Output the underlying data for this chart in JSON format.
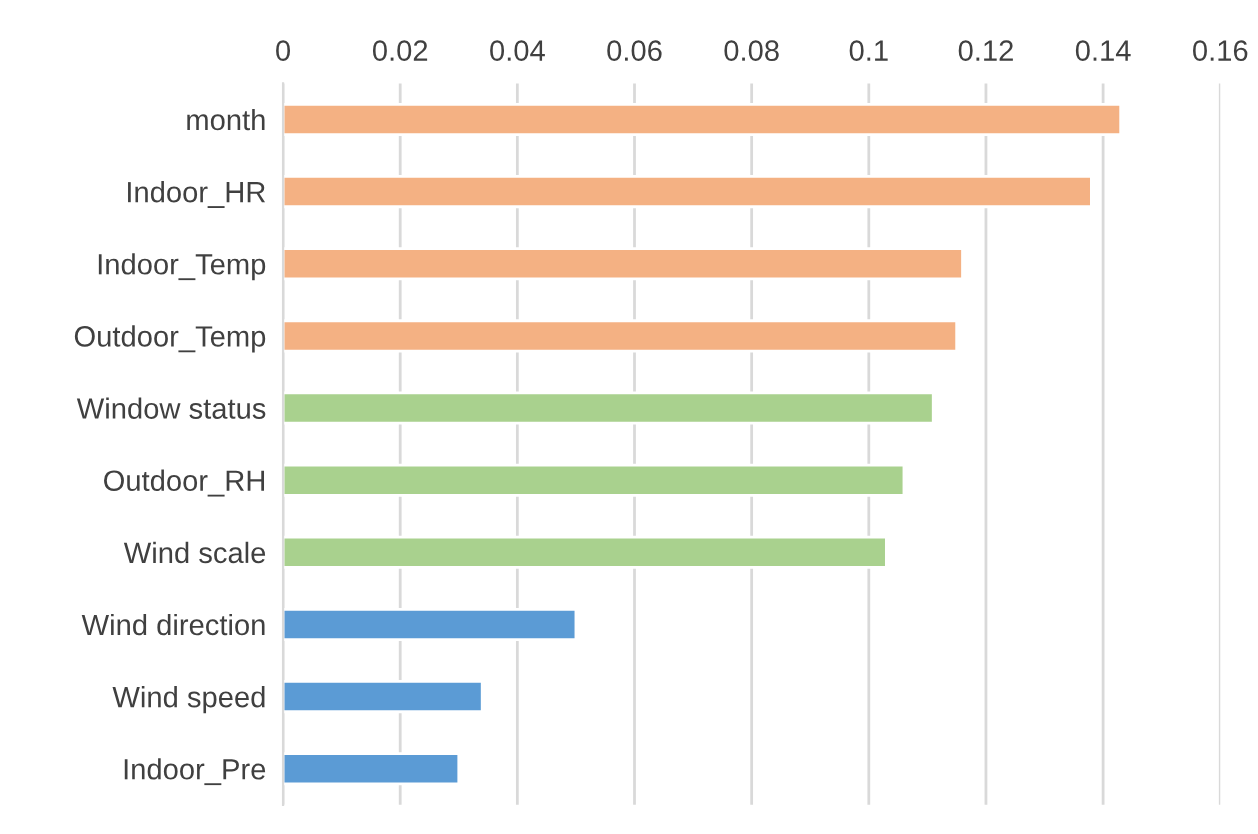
{
  "chart_data": {
    "type": "bar",
    "orientation": "horizontal",
    "categories": [
      "month",
      "Indoor_HR",
      "Indoor_Temp",
      "Outdoor_Temp",
      "Window status",
      "Outdoor_RH",
      "Wind scale",
      "Wind direction",
      "Wind speed",
      "Indoor_Pre"
    ],
    "values": [
      0.143,
      0.138,
      0.116,
      0.115,
      0.111,
      0.106,
      0.103,
      0.05,
      0.034,
      0.03
    ],
    "colors": [
      "#f4b183",
      "#f4b183",
      "#f4b183",
      "#f4b183",
      "#a9d18e",
      "#a9d18e",
      "#a9d18e",
      "#5b9bd5",
      "#5b9bd5",
      "#5b9bd5"
    ],
    "xlim": [
      0,
      0.16
    ],
    "xticks": [
      0,
      {
        "value": 0.02,
        "label": "0.02"
      },
      {
        "value": 0.04,
        "label": "0.04"
      },
      {
        "value": 0.06,
        "label": "0.06"
      },
      {
        "value": 0.08,
        "label": "0.08"
      },
      0.1,
      {
        "value": 0.12,
        "label": "0.12"
      },
      {
        "value": 0.14,
        "label": "0.14"
      },
      {
        "value": 0.16,
        "label": "0.16"
      }
    ],
    "grid": "x",
    "legend": false
  }
}
